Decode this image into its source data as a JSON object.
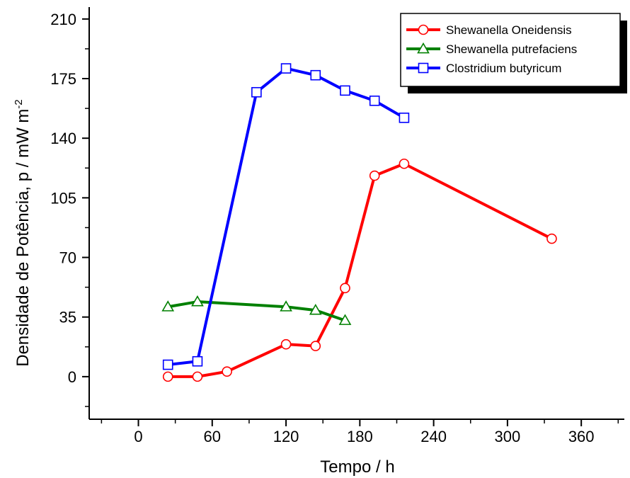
{
  "chart_data": {
    "type": "line",
    "xlabel": "Tempo / h",
    "ylabel_main": "Densidade de Potência, p / mW m",
    "ylabel_sup": "-2",
    "xlim": [
      -40,
      395
    ],
    "ylim": [
      -25,
      217
    ],
    "x_ticks": [
      0,
      60,
      120,
      180,
      240,
      300,
      360
    ],
    "y_ticks": [
      0,
      35,
      70,
      105,
      140,
      175,
      210
    ],
    "legend_position": "top-right",
    "series": [
      {
        "name": "Shewanella Oneidensis",
        "color": "#ff0000",
        "marker": "circle",
        "x": [
          24,
          48,
          72,
          120,
          144,
          168,
          192,
          216,
          336
        ],
        "y": [
          0,
          0,
          3,
          19,
          18,
          52,
          118,
          125,
          81
        ]
      },
      {
        "name": "Shewanella putrefaciens",
        "color": "#008000",
        "marker": "triangle",
        "x": [
          24,
          48,
          120,
          144,
          168
        ],
        "y": [
          41,
          44,
          41,
          39,
          33
        ]
      },
      {
        "name": "Clostridium butyricum",
        "color": "#0000ff",
        "marker": "square",
        "x": [
          24,
          48,
          96,
          120,
          144,
          168,
          192,
          216
        ],
        "y": [
          7,
          9,
          167,
          181,
          177,
          168,
          162,
          152
        ]
      }
    ]
  }
}
